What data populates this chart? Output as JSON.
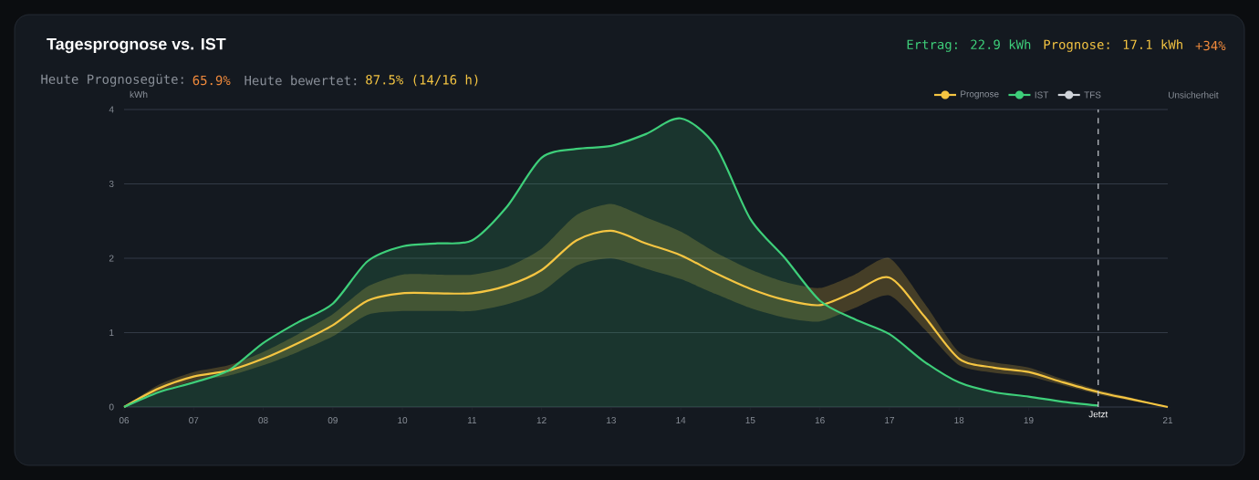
{
  "chart_data": {
    "type": "line",
    "title": "Tagesprognose vs. IST",
    "ylabel": "kWh",
    "annotations": [
      "Ertrag: 22.9 kWh",
      "Prognose: 17.1 kWh",
      "+34%",
      "Heute Prognosegüte:",
      "65.9%",
      "Heute bewertet:",
      "87.5% (14/16 h)",
      "Unsicherheit"
    ],
    "x": [
      6,
      6.5,
      7,
      7.5,
      8,
      8.5,
      9,
      9.5,
      10,
      10.5,
      11,
      11.5,
      12,
      12.5,
      13,
      13.5,
      14,
      14.5,
      15,
      15.5,
      16,
      16.5,
      17,
      17.5,
      18,
      18.5,
      19,
      19.5,
      20,
      20.5,
      21
    ],
    "series": [
      {
        "name": "Prognose",
        "color": "#f5c542",
        "values": [
          0,
          0.25,
          0.41,
          0.49,
          0.65,
          0.86,
          1.1,
          1.43,
          1.53,
          1.53,
          1.53,
          1.63,
          1.84,
          2.24,
          2.37,
          2.2,
          2.04,
          1.8,
          1.59,
          1.44,
          1.37,
          1.55,
          1.74,
          1.22,
          0.65,
          0.53,
          0.47,
          0.33,
          0.2,
          0.1,
          0
        ],
        "lower": [
          0,
          0.2,
          0.35,
          0.42,
          0.56,
          0.74,
          0.95,
          1.24,
          1.29,
          1.29,
          1.29,
          1.38,
          1.55,
          1.9,
          2.0,
          1.86,
          1.72,
          1.52,
          1.33,
          1.2,
          1.15,
          1.33,
          1.5,
          1.05,
          0.56,
          0.46,
          0.41,
          0.29,
          0.17,
          0.08,
          0
        ],
        "upper": [
          0,
          0.3,
          0.47,
          0.56,
          0.74,
          0.98,
          1.25,
          1.62,
          1.78,
          1.78,
          1.78,
          1.88,
          2.13,
          2.58,
          2.73,
          2.55,
          2.36,
          2.08,
          1.85,
          1.68,
          1.6,
          1.78,
          2.0,
          1.4,
          0.74,
          0.6,
          0.53,
          0.37,
          0.23,
          0.12,
          0
        ]
      },
      {
        "name": "IST",
        "type": "area",
        "color": "#3ecf7a",
        "values": [
          0,
          0.2,
          0.33,
          0.49,
          0.86,
          1.14,
          1.39,
          1.96,
          2.16,
          2.2,
          2.24,
          2.69,
          3.35,
          3.47,
          3.51,
          3.67,
          3.88,
          3.51,
          2.53,
          2.0,
          1.43,
          1.18,
          0.98,
          0.61,
          0.33,
          0.2,
          0.14,
          0.07,
          0.02,
          null,
          null
        ]
      },
      {
        "name": "TFS",
        "color": "#d0d4da",
        "values": [
          null,
          null,
          null,
          null,
          null,
          null,
          null,
          null,
          null,
          null,
          null,
          null,
          null,
          null,
          null,
          null,
          null,
          null,
          null,
          null,
          null,
          null,
          null,
          null,
          null,
          null,
          null,
          null,
          null,
          null,
          null
        ]
      }
    ],
    "xlim": [
      6,
      21
    ],
    "xticks": [
      {
        "value": 6,
        "label": "06"
      },
      {
        "value": 7,
        "label": "07"
      },
      {
        "value": 8,
        "label": "08"
      },
      {
        "value": 9,
        "label": "09"
      },
      {
        "value": 10,
        "label": "10"
      },
      {
        "value": 11,
        "label": "11"
      },
      {
        "value": 12,
        "label": "12"
      },
      {
        "value": 13,
        "label": "13"
      },
      {
        "value": 14,
        "label": "14"
      },
      {
        "value": 15,
        "label": "15"
      },
      {
        "value": 16,
        "label": "16"
      },
      {
        "value": 17,
        "label": "17"
      },
      {
        "value": 18,
        "label": "18"
      },
      {
        "value": 19,
        "label": "19"
      },
      {
        "value": 20,
        "label": null
      },
      {
        "value": 21,
        "label": "21"
      }
    ],
    "ylim": [
      0,
      4
    ],
    "yticks": [
      0,
      1,
      2,
      3,
      4
    ],
    "ref_lines": [
      {
        "axis": "x",
        "value": 20,
        "label": "Jetzt",
        "color": "#c8ccd2",
        "line_style": "dashed"
      }
    ],
    "grid": "y",
    "legend": "top right"
  }
}
